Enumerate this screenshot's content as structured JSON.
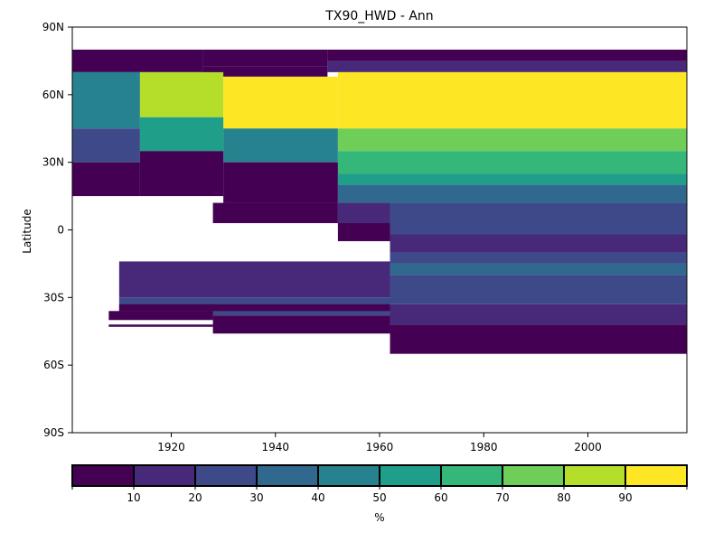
{
  "chart_data": {
    "type": "heatmap",
    "title": "TX90_HWD - Ann",
    "xlabel": "",
    "ylabel": "Latitude",
    "xlim": [
      1901,
      2019
    ],
    "ylim": [
      -90,
      90
    ],
    "x_ticks": [
      {
        "value": 1920,
        "label": "1920"
      },
      {
        "value": 1940,
        "label": "1940"
      },
      {
        "value": 1960,
        "label": "1960"
      },
      {
        "value": 1980,
        "label": "1980"
      },
      {
        "value": 2000,
        "label": "2000"
      }
    ],
    "y_ticks": [
      {
        "value": 90,
        "label": "90N"
      },
      {
        "value": 60,
        "label": "60N"
      },
      {
        "value": 30,
        "label": "30N"
      },
      {
        "value": 0,
        "label": "0"
      },
      {
        "value": -30,
        "label": "30S"
      },
      {
        "value": -60,
        "label": "60S"
      },
      {
        "value": -90,
        "label": "90S"
      }
    ],
    "colorbar": {
      "label": "%",
      "boundaries": [
        0,
        10,
        20,
        30,
        40,
        50,
        60,
        70,
        80,
        90,
        100
      ],
      "tick_labels": [
        "10",
        "20",
        "30",
        "40",
        "50",
        "60",
        "70",
        "80",
        "90"
      ],
      "colors": [
        "#440154",
        "#482878",
        "#3e4989",
        "#31688e",
        "#26828e",
        "#1f9e89",
        "#35b779",
        "#6ece58",
        "#b5de2b",
        "#fde725"
      ]
    },
    "bands": [
      {
        "lat": [
          70,
          80
        ],
        "x": [
          1901,
          1926
        ],
        "value": 5
      },
      {
        "lat": [
          72.5,
          80
        ],
        "x": [
          1926,
          1950
        ],
        "value": 5
      },
      {
        "lat": [
          75,
          80
        ],
        "x": [
          1950,
          2019
        ],
        "value": 5
      },
      {
        "lat": [
          68,
          72.5
        ],
        "x": [
          1926,
          1950
        ],
        "value": 5
      },
      {
        "lat": [
          70,
          75
        ],
        "x": [
          1950,
          2019
        ],
        "value": 15
      },
      {
        "lat": [
          45,
          70
        ],
        "x": [
          1901,
          1914
        ],
        "value": 45
      },
      {
        "lat": [
          50,
          70
        ],
        "x": [
          1914,
          1930
        ],
        "value": 85
      },
      {
        "lat": [
          45,
          68
        ],
        "x": [
          1930,
          1952
        ],
        "value": 95
      },
      {
        "lat": [
          45,
          70
        ],
        "x": [
          1952,
          2019
        ],
        "value": 95
      },
      {
        "lat": [
          30,
          45
        ],
        "x": [
          1901,
          1914
        ],
        "value": 25
      },
      {
        "lat": [
          35,
          50
        ],
        "x": [
          1914,
          1930
        ],
        "value": 55
      },
      {
        "lat": [
          30,
          45
        ],
        "x": [
          1930,
          1952
        ],
        "value": 45
      },
      {
        "lat": [
          35,
          45
        ],
        "x": [
          1952,
          2019
        ],
        "value": 75
      },
      {
        "lat": [
          25,
          35
        ],
        "x": [
          1952,
          2019
        ],
        "value": 65
      },
      {
        "lat": [
          15,
          30
        ],
        "x": [
          1901,
          1914
        ],
        "value": 5
      },
      {
        "lat": [
          15,
          35
        ],
        "x": [
          1914,
          1930
        ],
        "value": 5
      },
      {
        "lat": [
          12,
          30
        ],
        "x": [
          1930,
          1952
        ],
        "value": 5
      },
      {
        "lat": [
          20,
          25
        ],
        "x": [
          1952,
          2019
        ],
        "value": 55
      },
      {
        "lat": [
          12,
          20
        ],
        "x": [
          1952,
          2019
        ],
        "value": 35
      },
      {
        "lat": [
          3,
          12
        ],
        "x": [
          1928,
          1952
        ],
        "value": 5
      },
      {
        "lat": [
          2,
          12
        ],
        "x": [
          1952,
          1962
        ],
        "value": 15
      },
      {
        "lat": [
          -2,
          12
        ],
        "x": [
          1962,
          2019
        ],
        "value": 25
      },
      {
        "lat": [
          -5,
          3
        ],
        "x": [
          1952,
          1962
        ],
        "value": 5
      },
      {
        "lat": [
          -10,
          -2
        ],
        "x": [
          1962,
          2019
        ],
        "value": 15
      },
      {
        "lat": [
          -15,
          -10
        ],
        "x": [
          1962,
          2019
        ],
        "value": 25
      },
      {
        "lat": [
          -20,
          -15
        ],
        "x": [
          1962,
          2019
        ],
        "value": 35
      },
      {
        "lat": [
          -33,
          -20
        ],
        "x": [
          1962,
          2019
        ],
        "value": 25
      },
      {
        "lat": [
          -30,
          -14
        ],
        "x": [
          1910,
          1962
        ],
        "value": 15
      },
      {
        "lat": [
          -38,
          -30
        ],
        "x": [
          1910,
          1962
        ],
        "value": 25
      },
      {
        "lat": [
          -42,
          -33
        ],
        "x": [
          1962,
          2019
        ],
        "value": 15
      },
      {
        "lat": [
          -36,
          -33
        ],
        "x": [
          1910,
          1962
        ],
        "value": 5
      },
      {
        "lat": [
          -46,
          -38
        ],
        "x": [
          1928,
          1962
        ],
        "value": 5
      },
      {
        "lat": [
          -55,
          -42
        ],
        "x": [
          1962,
          2019
        ],
        "value": 5
      },
      {
        "lat": [
          -40,
          -36
        ],
        "x": [
          1908,
          1928
        ],
        "value": 5
      },
      {
        "lat": [
          -43,
          -42
        ],
        "x": [
          1908,
          1928
        ],
        "value": 5
      }
    ]
  }
}
